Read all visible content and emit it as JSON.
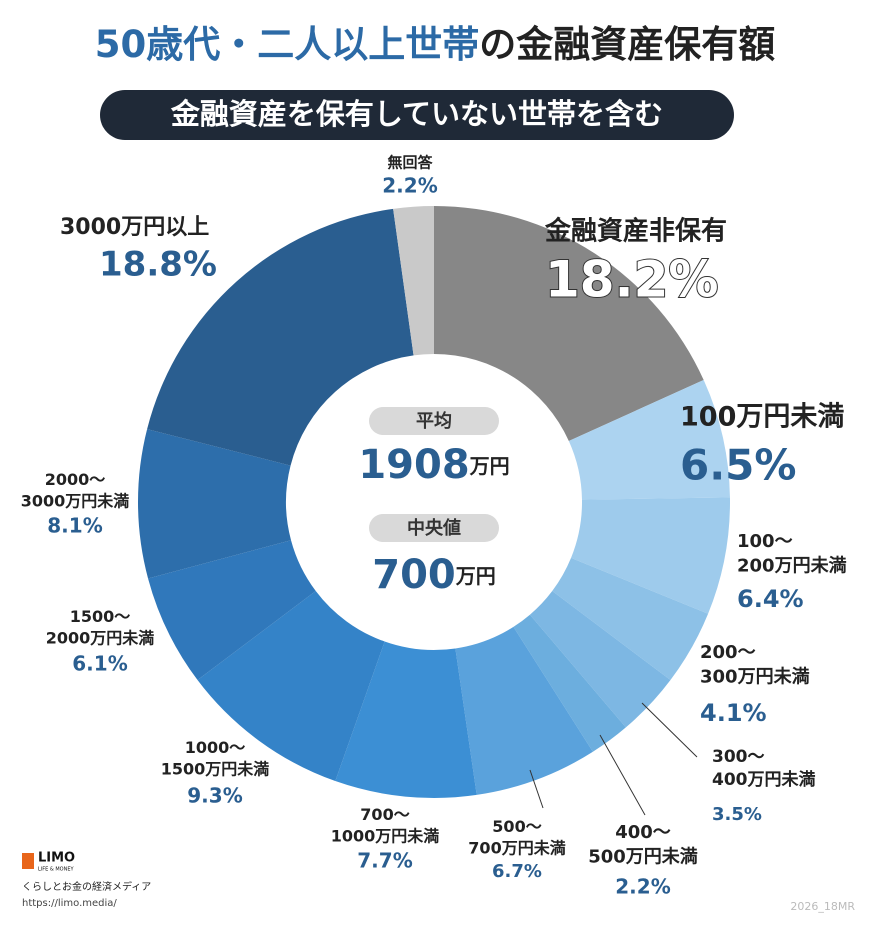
{
  "title_highlight": "50歳代・二人以上世帯",
  "title_rest": "の金融資産保有額",
  "subtitle": "金融資産を保有していない世帯を含む",
  "chart_data": {
    "type": "donut",
    "categories": [
      "金融資産非保有",
      "100万円未満",
      "100～200万円未満",
      "200～300万円未満",
      "300～400万円未満",
      "400～500万円未満",
      "500～700万円未満",
      "700～1000万円未満",
      "1000～1500万円未満",
      "1500～2000万円未満",
      "2000～3000万円未満",
      "3000万円以上",
      "無回答"
    ],
    "values": [
      18.2,
      6.5,
      6.4,
      4.1,
      3.5,
      2.2,
      6.7,
      7.7,
      9.3,
      6.1,
      8.1,
      18.8,
      2.2
    ],
    "value_labels": [
      "18.2%",
      "6.5%",
      "6.4%",
      "4.1%",
      "3.5%",
      "2.2%",
      "6.7%",
      "7.7%",
      "9.3%",
      "6.1%",
      "8.1%",
      "18.8%",
      "2.2%"
    ],
    "colors": [
      "#878787",
      "#acd3f0",
      "#9ecbec",
      "#8dc1e7",
      "#7db7e3",
      "#6caede",
      "#5aa2dc",
      "#3c8fd4",
      "#3483c8",
      "#3078bb",
      "#2d6eab",
      "#2a5e90",
      "#c9c9c9"
    ]
  },
  "center": {
    "mean_label": "平均",
    "mean": 1908,
    "mean_unit": "万円",
    "median_label": "中央値",
    "median": 700,
    "median_unit": "万円"
  },
  "footer": {
    "logo": "LIMO",
    "logo_sub": "LIFE & MONEY",
    "tagline": "くらしとお金の経済メディア",
    "url": "https://limo.media/",
    "code": "2026_18MR"
  }
}
